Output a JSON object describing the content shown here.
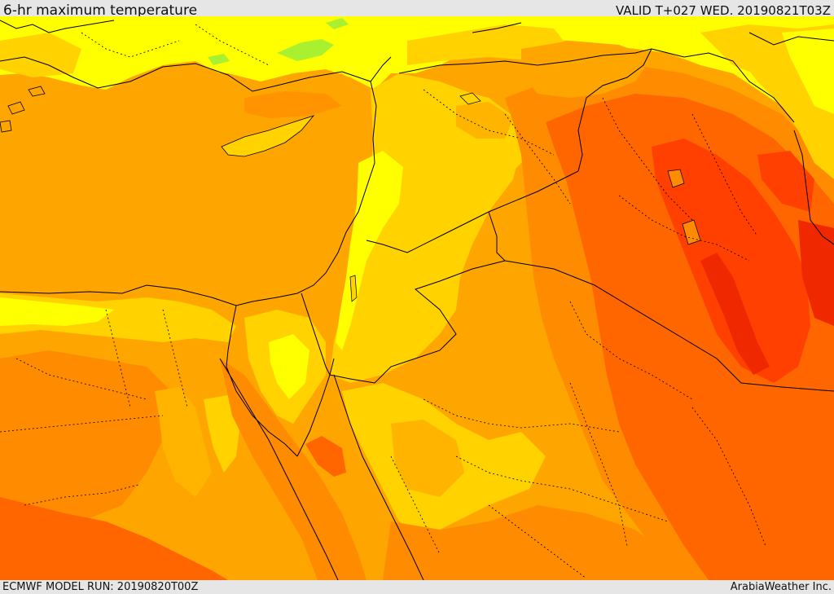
{
  "header": {
    "title": "6-hr maximum temperature",
    "valid_time": "VALID T+027 WED. 20190821T03Z"
  },
  "footer": {
    "model_run": "ECMWF MODEL RUN: 20190820T00Z",
    "credit": "ArabiaWeather Inc."
  },
  "map": {
    "field": "6-hr maximum temperature",
    "colors": {
      "light_green": "#a8f030",
      "yellow": "#ffff00",
      "gold": "#ffd200",
      "light_orange": "#ffb400",
      "orange": "#ffa500",
      "dark_orange": "#ff8c00",
      "red_orange": "#ff6600",
      "red": "#ff4000",
      "deep_red": "#f02800",
      "borders": "#000000"
    }
  }
}
